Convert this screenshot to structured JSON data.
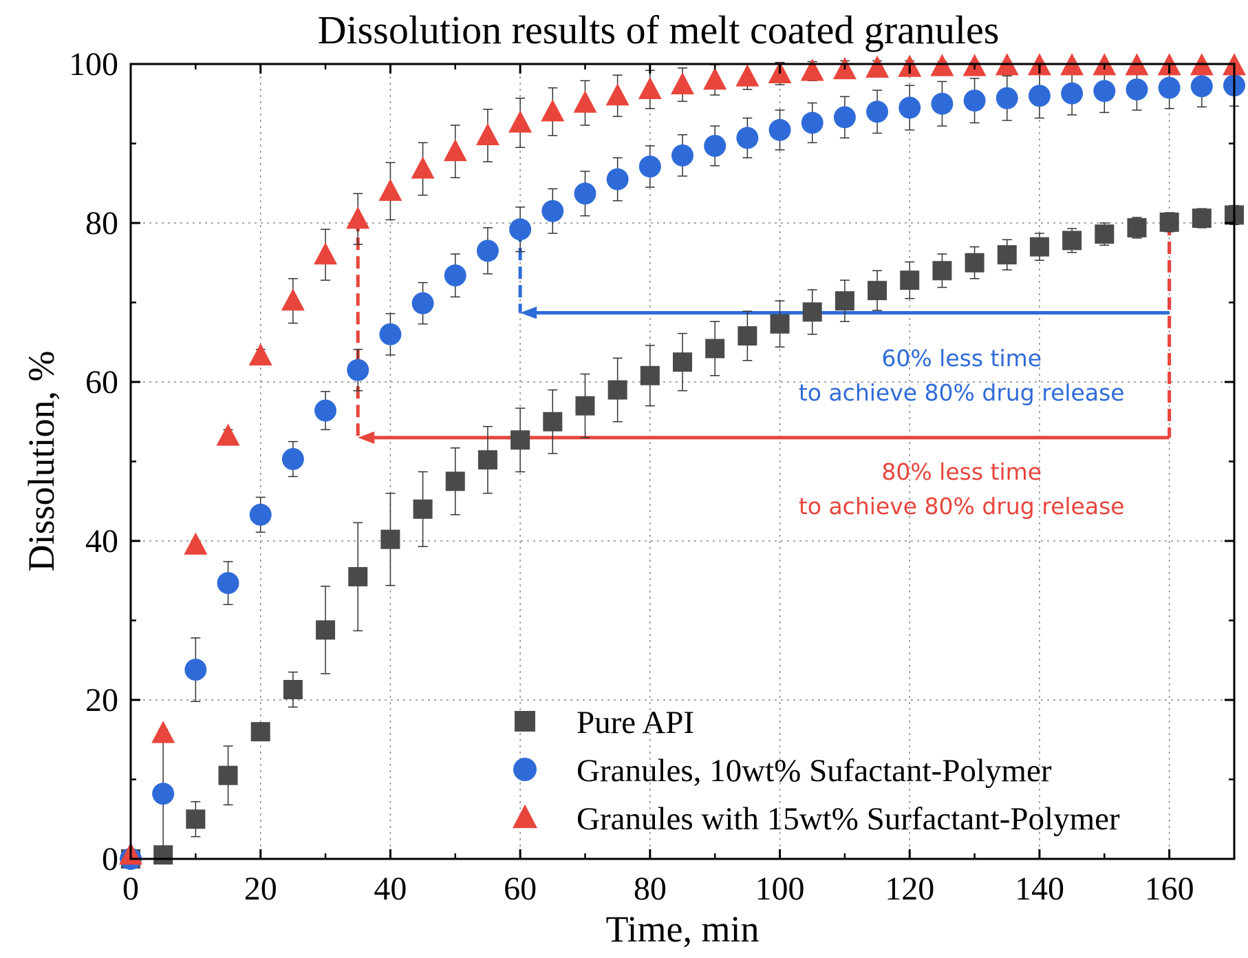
{
  "chart_data": {
    "type": "scatter",
    "title": "Dissolution results of melt coated granules",
    "xlabel": "Time, min",
    "ylabel": "Dissolution, %",
    "xlim": [
      0,
      170
    ],
    "ylim": [
      0,
      100
    ],
    "xticks": [
      "0",
      "20",
      "40",
      "60",
      "80",
      "100",
      "120",
      "140",
      "160"
    ],
    "yticks": [
      "0",
      "20",
      "40",
      "60",
      "80",
      "100"
    ],
    "grid": true,
    "legend_position": "bottom-right",
    "series": [
      {
        "name": "Pure API",
        "marker": "square",
        "color": "#4a4a4a",
        "x": [
          0,
          5,
          10,
          15,
          20,
          25,
          30,
          35,
          40,
          45,
          50,
          55,
          60,
          65,
          70,
          75,
          80,
          85,
          90,
          95,
          100,
          105,
          110,
          115,
          120,
          125,
          130,
          135,
          140,
          145,
          150,
          155,
          160,
          165,
          170
        ],
        "y": [
          0,
          0.5,
          5,
          10.5,
          16,
          21.3,
          28.8,
          35.5,
          40.2,
          44,
          47.5,
          50.2,
          52.7,
          55,
          57,
          59,
          60.8,
          62.5,
          64.2,
          65.8,
          67.3,
          68.8,
          70.2,
          71.5,
          72.8,
          74,
          75,
          76,
          77,
          77.8,
          78.6,
          79.4,
          80.1,
          80.6,
          81
        ],
        "err": [
          0,
          0.5,
          2.2,
          3.7,
          0.6,
          2.2,
          5.5,
          6.8,
          5.8,
          4.7,
          4.2,
          4.2,
          4,
          4,
          4,
          4,
          3.8,
          3.6,
          3.4,
          3.1,
          2.9,
          2.8,
          2.6,
          2.5,
          2.3,
          2.1,
          2,
          1.9,
          1.7,
          1.5,
          1.4,
          1.3,
          1.2,
          1.2,
          1.2
        ]
      },
      {
        "name": "Granules, 10wt% Sufactant-Polymer",
        "marker": "circle",
        "color": "#2f6bd8",
        "x": [
          0,
          5,
          10,
          15,
          20,
          25,
          30,
          35,
          40,
          45,
          50,
          55,
          60,
          65,
          70,
          75,
          80,
          85,
          90,
          95,
          100,
          105,
          110,
          115,
          120,
          125,
          130,
          135,
          140,
          145,
          150,
          155,
          160,
          165,
          170
        ],
        "y": [
          0,
          8.2,
          23.8,
          34.7,
          43.3,
          50.3,
          56.4,
          61.5,
          66,
          69.9,
          73.4,
          76.5,
          79.2,
          81.5,
          83.7,
          85.5,
          87.1,
          88.5,
          89.7,
          90.7,
          91.7,
          92.6,
          93.3,
          94,
          94.5,
          95,
          95.4,
          95.7,
          96,
          96.3,
          96.6,
          96.8,
          97,
          97.2,
          97.3
        ],
        "err": [
          0,
          7.5,
          4,
          2.7,
          2.2,
          2.2,
          2.4,
          2.6,
          2.6,
          2.6,
          2.7,
          2.9,
          2.8,
          2.8,
          2.8,
          2.7,
          2.6,
          2.6,
          2.5,
          2.5,
          2.5,
          2.5,
          2.6,
          2.7,
          2.8,
          2.8,
          2.8,
          2.8,
          2.8,
          2.7,
          2.7,
          2.6,
          2.6,
          2.6,
          2.6
        ]
      },
      {
        "name": "Granules with 15wt% Surfactant-Polymer",
        "marker": "triangle",
        "color": "#e8453c",
        "x": [
          0,
          5,
          10,
          15,
          20,
          25,
          30,
          35,
          40,
          45,
          50,
          55,
          60,
          65,
          70,
          75,
          80,
          85,
          90,
          95,
          100,
          105,
          110,
          115,
          120,
          125,
          130,
          135,
          140,
          145,
          150,
          155,
          160,
          165,
          170
        ],
        "y": [
          0.5,
          15.8,
          39.5,
          53.2,
          63.3,
          70.2,
          76,
          80.5,
          84,
          86.8,
          89,
          91,
          92.6,
          94,
          95.1,
          96,
          96.8,
          97.4,
          98,
          98.4,
          98.8,
          99.1,
          99.3,
          99.5,
          99.6,
          99.7,
          99.7,
          99.8,
          99.8,
          99.8,
          99.8,
          99.8,
          99.8,
          99.8,
          99.8
        ],
        "err": [
          0,
          0.5,
          0.5,
          0.8,
          0.8,
          2.8,
          3.2,
          3.2,
          3.6,
          3.3,
          3.3,
          3.3,
          3.1,
          3,
          2.8,
          2.6,
          2.4,
          2.1,
          1.9,
          1.6,
          1.4,
          1.2,
          1.1,
          0.9,
          0.8,
          0.6,
          0.5,
          0.5,
          0.4,
          0.4,
          0.4,
          0.3,
          0.3,
          0.3,
          0.3
        ]
      }
    ],
    "annotations": [
      {
        "text_lines": [
          "60% less time",
          "to achieve 80% drug release"
        ],
        "color": "#2f6bd8",
        "arrow_from": [
          160,
          80
        ],
        "arrow_corner": [
          160,
          68.7
        ],
        "arrow_to": [
          60,
          68.7
        ],
        "drop_from": [
          60,
          79.2
        ],
        "label_anchor": [
          128,
          62
        ]
      },
      {
        "text_lines": [
          "80% less time",
          "to achieve 80% drug release"
        ],
        "color": "#e8453c",
        "arrow_from": [
          160,
          80
        ],
        "arrow_corner": [
          160,
          53
        ],
        "arrow_to": [
          35,
          53
        ],
        "drop_from": [
          35,
          80.5
        ],
        "label_anchor": [
          128,
          47.7
        ]
      }
    ]
  }
}
